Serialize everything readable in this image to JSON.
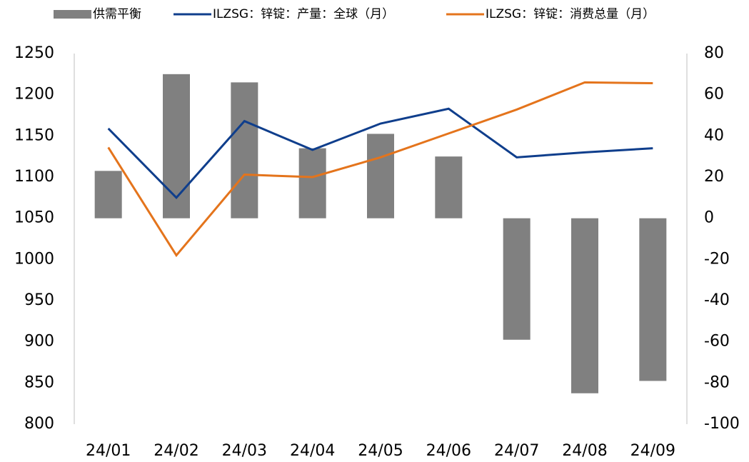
{
  "chart_data": {
    "type": "bar-line",
    "categories": [
      "24/01",
      "24/02",
      "24/03",
      "24/04",
      "24/05",
      "24/06",
      "24/07",
      "24/08",
      "24/09"
    ],
    "series": [
      {
        "name": "供需平衡",
        "type": "bar",
        "axis": "y2",
        "color": "#808080",
        "values": [
          23,
          70,
          66,
          34,
          41,
          30,
          -59,
          -85,
          -79
        ]
      },
      {
        "name": "ILZSG：锌锭：产量：全球（月）",
        "type": "line",
        "axis": "y",
        "color": "#0f3e8c",
        "values": [
          1159,
          1075,
          1168,
          1133,
          1165,
          1183,
          1124,
          1130,
          1135
        ]
      },
      {
        "name": "ILZSG：锌锭：消费总量（月）",
        "type": "line",
        "axis": "y",
        "color": "#e4741c",
        "values": [
          1136,
          1005,
          1103,
          1100,
          1124,
          1153,
          1182,
          1215,
          1214
        ]
      }
    ],
    "ylim": [
      800,
      1250
    ],
    "yticks": [
      800,
      850,
      900,
      950,
      1000,
      1050,
      1100,
      1150,
      1200,
      1250
    ],
    "y2lim": [
      -100,
      80
    ],
    "y2ticks": [
      -100,
      -80,
      -60,
      -40,
      -20,
      0,
      20,
      40,
      60,
      80
    ],
    "legend": "top"
  }
}
